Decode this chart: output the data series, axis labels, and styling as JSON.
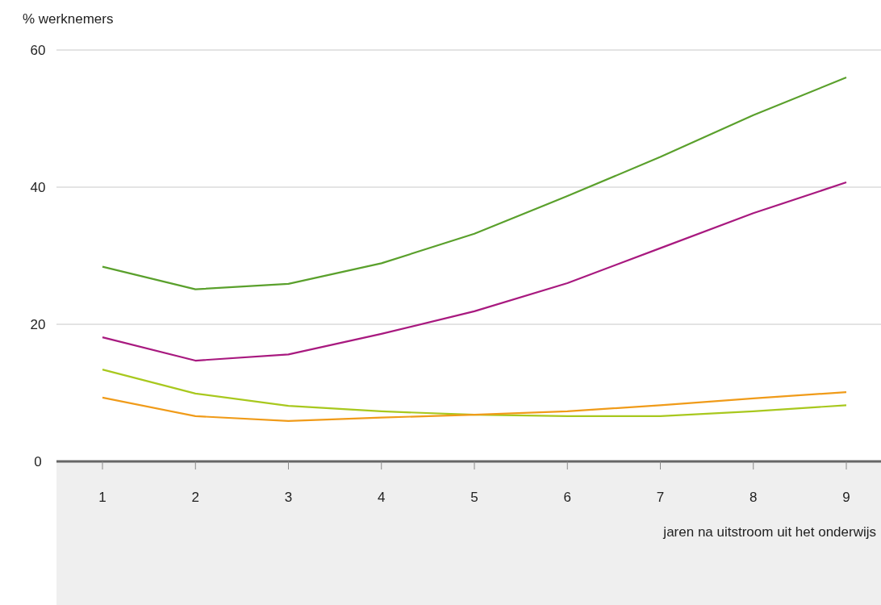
{
  "chart_data": {
    "type": "line",
    "ylabel": "% werknemers",
    "xlabel": "jaren na uitstroom uit het onderwijs",
    "categories": [
      "1",
      "2",
      "3",
      "4",
      "5",
      "6",
      "7",
      "8",
      "9"
    ],
    "series": [
      {
        "color": "#5aa02c",
        "values": [
          28.4,
          25.1,
          25.9,
          28.9,
          33.2,
          38.7,
          44.4,
          50.5,
          56.0
        ]
      },
      {
        "color": "#a8197f",
        "values": [
          18.1,
          14.7,
          15.6,
          18.6,
          21.9,
          26.0,
          31.1,
          36.2,
          40.7
        ]
      },
      {
        "color": "#a8c81e",
        "values": [
          13.4,
          9.9,
          8.1,
          7.3,
          6.8,
          6.6,
          6.6,
          7.3,
          8.2
        ]
      },
      {
        "color": "#f09b19",
        "values": [
          9.3,
          6.6,
          5.9,
          6.4,
          6.8,
          7.3,
          8.2,
          9.2,
          10.1
        ]
      }
    ],
    "ylim": [
      0,
      60
    ],
    "yticks": [
      0,
      20,
      40,
      60
    ],
    "grid": "y",
    "marker": "none",
    "line_style": "solid"
  }
}
